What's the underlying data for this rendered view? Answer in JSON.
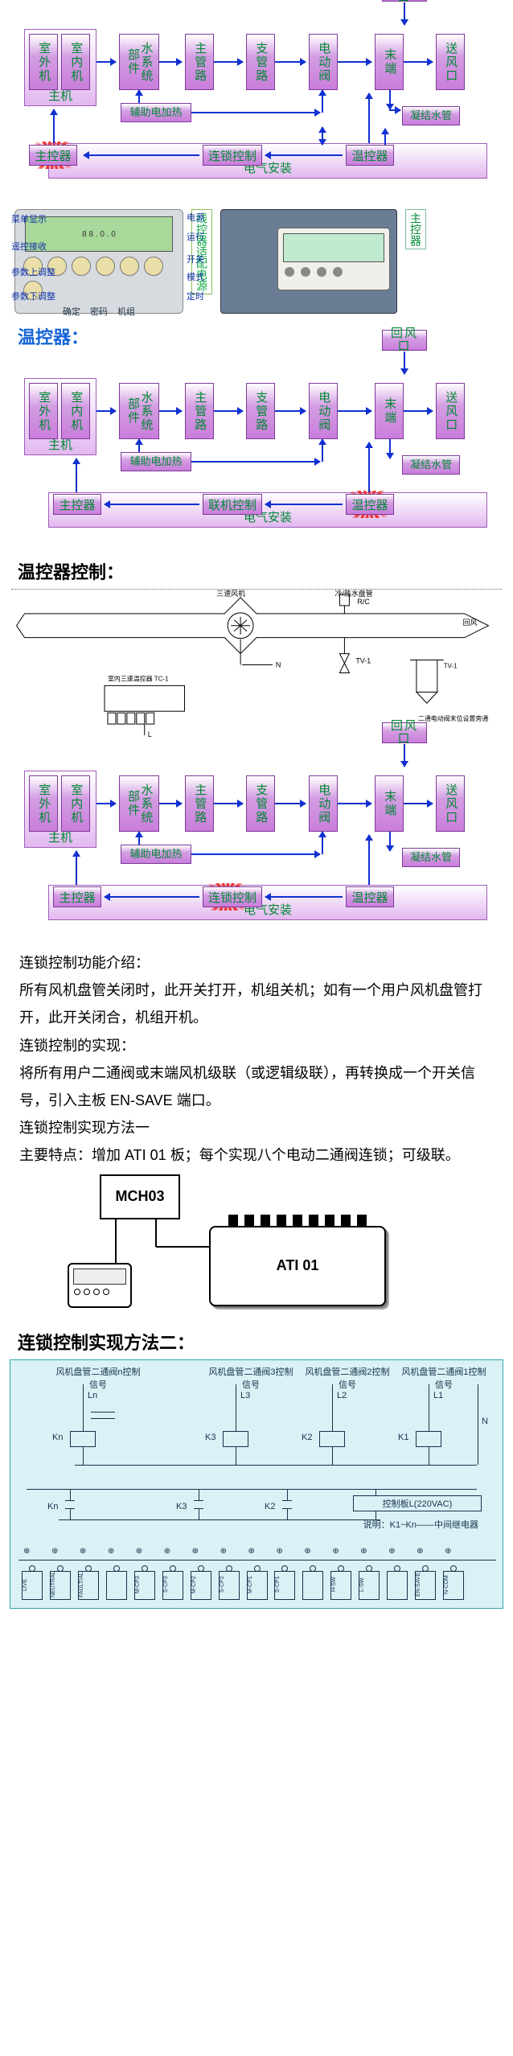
{
  "colors": {
    "node_fill_top": "#ffffff",
    "node_fill_bottom": "#c97ddb",
    "node_border": "#7e3a99",
    "node_text": "#006633",
    "arrow": "#1030d0",
    "highlight_star": "#e53030",
    "header_blue": "#1565d6",
    "ladder_bg": "#daf1f6",
    "ladder_line": "#16324a"
  },
  "flowchart_common": {
    "host_label": "主机",
    "elec_label": "电气安装",
    "nodes": {
      "outdoor": "室外机",
      "indoor": "室内机",
      "water_sys": "水系统部件",
      "main_pipe": "主管路",
      "branch_pipe": "支管路",
      "valve": "电动阀",
      "terminal": "末端",
      "supply": "送风口",
      "return": "回风口",
      "aux_heat": "辅助电加热",
      "condensate": "凝结水管",
      "main_ctrl": "主控器",
      "interlock_ctrl": "连锁控制",
      "online_ctrl": "联机控制",
      "temp_ctrl": "温控器"
    }
  },
  "remote_panel": {
    "left_labels": [
      "菜单显示",
      "遥控接收",
      "参数上调整",
      "参数下调整"
    ],
    "right_labels": [
      "电源",
      "运行",
      "开关",
      "模式",
      "定时"
    ],
    "bottom_labels": [
      "确定",
      "密码",
      "机组"
    ],
    "side_caption": "线控器适配电源",
    "right_caption": "主控器"
  },
  "headers": {
    "temp_controller": "温控器：",
    "temp_ctrl_control": "温控器控制：",
    "interlock_method2": "连锁控制实现方法二："
  },
  "schematic_labels": {
    "fan": "三速风机",
    "hw": "冷/热水盘管",
    "rc": "R/C",
    "tv1": "TV-1",
    "return_air": "回风",
    "room_tc": "室内三速温控器 TC-1",
    "note": "二通电动阀末位设置旁通"
  },
  "body_text": {
    "intro_title": "连锁控制功能介绍：",
    "intro1": "所有风机盘管关闭时，此开关打开，机组关机；如有一个用户风机盘管打开，此开关闭合，机组开机。",
    "impl_title": "连锁控制的实现：",
    "impl1": "将所有用户二通阀或末端风机级联（或逻辑级联），再转换成一个开关信号，引入主板 EN-SAVE 端口。",
    "method1_title": "连锁控制实现方法一",
    "method1_body": "主要特点：增加 ATI  01 板；每个实现八个电动二通阀连锁；可级联。"
  },
  "module_diagram": {
    "mch": "MCH03",
    "ati": "ATI 01",
    "terminal_count": 9
  },
  "ladder": {
    "top_labels": [
      "风机盘管二通阀n控制信号",
      "风机盘管二通阀3控制信号",
      "风机盘管二通阀2控制信号",
      "风机盘管二通阀1控制信号"
    ],
    "l_labels": [
      "Ln",
      "L3",
      "L2",
      "L1"
    ],
    "k_labels": [
      "Kn",
      "K3",
      "K2",
      "K1"
    ],
    "neutral": "N",
    "row2_k": [
      "Kn",
      "K3",
      "K2",
      "K1"
    ],
    "board_label": "控制板L(220VAC)",
    "note": "说明：K1~Kn——中间继电器",
    "bottom_cards": [
      "LIVE",
      "NEUTRAL",
      "FAULT/ALARM",
      "",
      "M-CP3",
      "S-CP3",
      "M-CP2",
      "S-CP2",
      "M-CP1",
      "S-CP1",
      "",
      "H-SW",
      "L-SW",
      "",
      "EN-SAVE",
      "N-COM"
    ]
  }
}
